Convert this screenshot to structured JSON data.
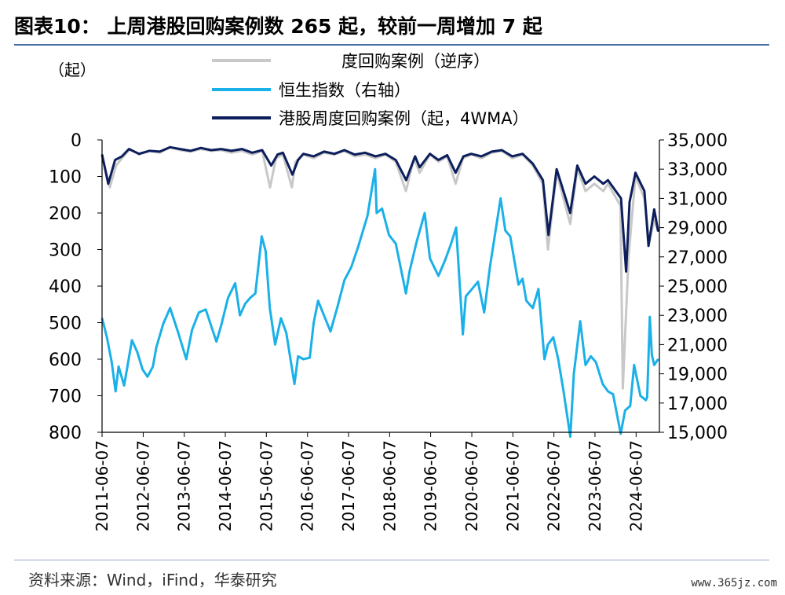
{
  "header": {
    "title": "图表10：  上周港股回购案例数 265 起，较前一周增加 7 起"
  },
  "footer": {
    "source": "资料来源：Wind，iFind，华泰研究",
    "watermark": "www.365jz.com"
  },
  "chart_data": {
    "type": "line",
    "left_axis": {
      "unit_label": "（起）",
      "reversed": true,
      "range": [
        0,
        800
      ],
      "ticks": [
        "0",
        "100",
        "200",
        "300",
        "400",
        "500",
        "600",
        "700",
        "800"
      ]
    },
    "right_axis": {
      "range": [
        15000,
        35000
      ],
      "ticks": [
        "35,000",
        "33,000",
        "31,000",
        "29,000",
        "27,000",
        "25,000",
        "23,000",
        "21,000",
        "19,000",
        "17,000",
        "15,000"
      ]
    },
    "x_axis": {
      "range": [
        "2011-06-07",
        "2024-12-31"
      ],
      "ticks": [
        "2011-06-07",
        "2012-06-07",
        "2013-06-07",
        "2014-06-07",
        "2015-06-07",
        "2016-06-07",
        "2017-06-07",
        "2018-06-07",
        "2019-06-07",
        "2020-06-07",
        "2021-06-07",
        "2022-06-07",
        "2023-06-07",
        "2024-06-07"
      ]
    },
    "legend": {
      "placement": "top",
      "entries": [
        "度回购案例（逆序）",
        "恒生指数（右轴）",
        "港股周度回购案例（起，4WMA）"
      ]
    },
    "series": [
      {
        "name": "度回购案例（逆序）",
        "axis": "left",
        "color": "#c8c8c8",
        "x": [
          "2011-06-07",
          "2011-08-15",
          "2011-10-10",
          "2011-12-01",
          "2012-02-10",
          "2012-05-01",
          "2012-08-01",
          "2012-11-01",
          "2013-02-01",
          "2013-05-01",
          "2013-08-01",
          "2013-11-01",
          "2014-02-01",
          "2014-05-01",
          "2014-08-01",
          "2014-11-01",
          "2015-02-01",
          "2015-05-01",
          "2015-07-10",
          "2015-09-01",
          "2015-11-01",
          "2016-01-20",
          "2016-02-20",
          "2016-05-01",
          "2016-08-01",
          "2016-11-01",
          "2017-02-01",
          "2017-05-01",
          "2017-08-01",
          "2017-11-01",
          "2018-02-01",
          "2018-05-01",
          "2018-08-01",
          "2018-10-30",
          "2019-01-10",
          "2019-03-01",
          "2019-06-01",
          "2019-08-15",
          "2019-11-01",
          "2020-01-15",
          "2020-03-20",
          "2020-06-01",
          "2020-09-01",
          "2020-12-01",
          "2021-03-01",
          "2021-06-01",
          "2021-09-01",
          "2021-12-01",
          "2022-03-01",
          "2022-04-15",
          "2022-07-01",
          "2022-10-30",
          "2023-01-01",
          "2023-03-15",
          "2023-06-01",
          "2023-08-20",
          "2023-10-01",
          "2024-01-20",
          "2024-02-10",
          "2024-04-01",
          "2024-06-01",
          "2024-08-20",
          "2024-10-01",
          "2024-11-15",
          "2024-12-20"
        ],
        "values": [
          45,
          130,
          70,
          50,
          25,
          40,
          30,
          35,
          20,
          28,
          32,
          25,
          30,
          28,
          35,
          30,
          40,
          30,
          130,
          50,
          40,
          130,
          60,
          40,
          50,
          35,
          40,
          30,
          45,
          40,
          50,
          40,
          60,
          140,
          50,
          90,
          40,
          60,
          45,
          120,
          50,
          40,
          50,
          35,
          30,
          50,
          40,
          70,
          120,
          300,
          90,
          230,
          80,
          140,
          120,
          140,
          120,
          180,
          680,
          320,
          100,
          160,
          280,
          220,
          250
        ]
      },
      {
        "name": "恒生指数（右轴）",
        "axis": "right",
        "color": "#1ab0e8",
        "x": [
          "2011-06-07",
          "2011-07-20",
          "2011-09-01",
          "2011-10-05",
          "2011-11-01",
          "2011-12-20",
          "2012-02-28",
          "2012-04-15",
          "2012-06-01",
          "2012-07-15",
          "2012-09-01",
          "2012-10-01",
          "2012-12-01",
          "2013-02-01",
          "2013-04-15",
          "2013-06-25",
          "2013-08-15",
          "2013-10-15",
          "2013-12-15",
          "2014-03-20",
          "2014-05-01",
          "2014-07-01",
          "2014-09-03",
          "2014-10-15",
          "2014-12-01",
          "2015-01-15",
          "2015-03-01",
          "2015-04-27",
          "2015-06-01",
          "2015-07-08",
          "2015-08-24",
          "2015-10-15",
          "2015-12-01",
          "2016-02-12",
          "2016-03-15",
          "2016-05-01",
          "2016-06-27",
          "2016-08-01",
          "2016-09-09",
          "2016-10-15",
          "2016-12-28",
          "2017-03-01",
          "2017-05-01",
          "2017-07-01",
          "2017-09-01",
          "2017-11-22",
          "2018-01-29",
          "2018-02-12",
          "2018-04-01",
          "2018-06-01",
          "2018-08-01",
          "2018-10-30",
          "2018-12-01",
          "2019-02-01",
          "2019-04-15",
          "2019-06-01",
          "2019-08-15",
          "2019-10-15",
          "2019-12-01",
          "2020-01-20",
          "2020-03-19",
          "2020-04-15",
          "2020-06-09",
          "2020-08-01",
          "2020-09-25",
          "2020-11-15",
          "2021-02-18",
          "2021-04-01",
          "2021-05-15",
          "2021-07-27",
          "2021-09-01",
          "2021-10-05",
          "2021-12-01",
          "2022-01-20",
          "2022-03-15",
          "2022-04-15",
          "2022-06-01",
          "2022-07-15",
          "2022-09-01",
          "2022-10-31",
          "2022-12-01",
          "2023-01-27",
          "2023-03-15",
          "2023-05-01",
          "2023-06-15",
          "2023-08-15",
          "2023-10-01",
          "2023-11-15",
          "2024-01-22",
          "2024-03-01",
          "2024-04-15",
          "2024-05-20",
          "2024-07-15",
          "2024-09-01",
          "2024-09-13",
          "2024-10-07",
          "2024-10-25",
          "2024-11-15",
          "2024-12-20"
        ],
        "values": [
          22800,
          21500,
          19800,
          17800,
          19500,
          18200,
          21300,
          20500,
          19300,
          18800,
          19500,
          20800,
          22400,
          23500,
          21800,
          20000,
          22000,
          23200,
          23400,
          21200,
          22300,
          24200,
          25200,
          23000,
          23800,
          24200,
          24500,
          28400,
          27400,
          23500,
          21000,
          22800,
          21800,
          18300,
          20200,
          20000,
          20100,
          22500,
          24000,
          23300,
          21900,
          23600,
          25400,
          26300,
          27700,
          29800,
          33000,
          30000,
          30300,
          28500,
          27900,
          24500,
          26000,
          28000,
          30000,
          26900,
          25700,
          26800,
          27800,
          29000,
          21700,
          24300,
          24800,
          25300,
          23200,
          26300,
          31000,
          28800,
          28400,
          25100,
          25500,
          24000,
          23500,
          24800,
          20000,
          21000,
          21500,
          20000,
          17800,
          14700,
          19000,
          22600,
          19600,
          20200,
          19800,
          18300,
          17800,
          17600,
          14900,
          16500,
          16800,
          19600,
          17500,
          17200,
          17400,
          22900,
          20300,
          19600,
          20000
        ]
      },
      {
        "name": "港股周度回购案例（起，4WMA）",
        "axis": "left",
        "color": "#0c1f5c",
        "x": [
          "2011-06-07",
          "2011-08-01",
          "2011-10-01",
          "2011-12-01",
          "2012-02-01",
          "2012-05-01",
          "2012-08-01",
          "2012-11-01",
          "2013-02-01",
          "2013-05-01",
          "2013-08-01",
          "2013-11-01",
          "2014-02-01",
          "2014-05-01",
          "2014-08-01",
          "2014-11-01",
          "2015-02-01",
          "2015-05-01",
          "2015-07-20",
          "2015-09-15",
          "2015-11-01",
          "2016-01-25",
          "2016-03-15",
          "2016-05-01",
          "2016-08-01",
          "2016-11-01",
          "2017-02-01",
          "2017-05-01",
          "2017-08-01",
          "2017-11-01",
          "2018-02-01",
          "2018-05-01",
          "2018-08-01",
          "2018-11-01",
          "2019-01-20",
          "2019-03-01",
          "2019-06-01",
          "2019-08-15",
          "2019-11-01",
          "2020-01-15",
          "2020-03-25",
          "2020-06-01",
          "2020-09-01",
          "2020-12-01",
          "2021-03-01",
          "2021-06-01",
          "2021-09-01",
          "2021-12-01",
          "2022-03-01",
          "2022-04-20",
          "2022-07-01",
          "2022-10-30",
          "2023-01-01",
          "2023-03-15",
          "2023-06-01",
          "2023-08-20",
          "2023-10-01",
          "2024-01-25",
          "2024-03-10",
          "2024-04-10",
          "2024-06-01",
          "2024-08-20",
          "2024-09-25",
          "2024-11-15",
          "2024-12-20"
        ],
        "values": [
          40,
          120,
          55,
          45,
          25,
          38,
          30,
          32,
          20,
          25,
          30,
          22,
          28,
          25,
          30,
          25,
          35,
          28,
          70,
          40,
          35,
          95,
          55,
          38,
          45,
          32,
          38,
          28,
          40,
          35,
          45,
          38,
          55,
          110,
          45,
          75,
          38,
          55,
          42,
          90,
          45,
          38,
          45,
          32,
          28,
          45,
          38,
          65,
          110,
          260,
          80,
          200,
          70,
          120,
          100,
          120,
          110,
          160,
          360,
          170,
          90,
          140,
          290,
          190,
          250
        ]
      }
    ]
  }
}
